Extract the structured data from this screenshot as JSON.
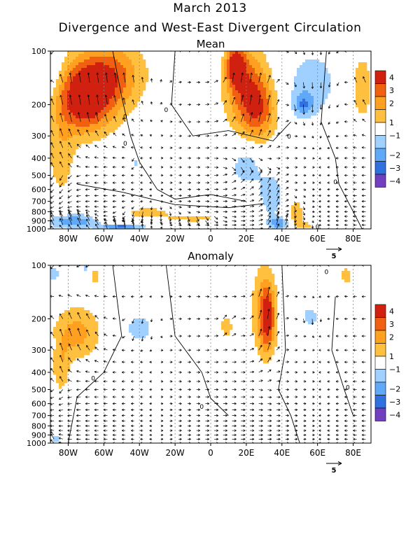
{
  "header": {
    "title_line1": "March 2013",
    "title_line2": "Divergence and West-East Divergent Circulation"
  },
  "colors": {
    "div_pos_1": "#ffc040",
    "div_pos_2": "#ffa020",
    "div_pos_3": "#f06010",
    "div_pos_4": "#d02010",
    "div_neg_1": "#9fd0ff",
    "div_neg_2": "#60a8f8",
    "div_neg_3": "#3070e0",
    "div_neg_4": "#7040c0"
  },
  "chart_data": [
    {
      "type": "heatmap",
      "panel_title": "Mean",
      "x_ticks": [
        "80W",
        "60W",
        "40W",
        "20W",
        "0",
        "20E",
        "40E",
        "60E",
        "80E"
      ],
      "x_tick_values": [
        -80,
        -60,
        -40,
        -20,
        0,
        20,
        40,
        60,
        80
      ],
      "xlim": [
        -90,
        90
      ],
      "y_ticks": [
        "100",
        "200",
        "300",
        "400",
        "500",
        "600",
        "700",
        "800",
        "900",
        "1000"
      ],
      "y_tick_values": [
        100,
        200,
        300,
        400,
        500,
        600,
        700,
        800,
        900,
        1000
      ],
      "ylim": [
        1000,
        100
      ],
      "y_scale": "log",
      "colorbar_labels": [
        "4",
        "3",
        "2",
        "1",
        "−1",
        "−2",
        "−3",
        "−4"
      ],
      "vector_ref_label": "5",
      "contour_label": "0",
      "blobs": [
        {
          "lon": -72,
          "lev": 190,
          "rlon": 14,
          "rlev": 0.42,
          "v": 4
        },
        {
          "lon": -62,
          "lev": 160,
          "rlon": 18,
          "rlev": 0.5,
          "v": 2.5
        },
        {
          "lon": -55,
          "lev": 130,
          "rlon": 20,
          "rlev": 0.4,
          "v": 2
        },
        {
          "lon": -84,
          "lev": 380,
          "rlon": 8,
          "rlev": 0.6,
          "v": 1.6
        },
        {
          "lon": 20,
          "lev": 160,
          "rlon": 12,
          "rlev": 0.55,
          "v": 3.6
        },
        {
          "lon": 14,
          "lev": 120,
          "rlon": 5,
          "rlev": 0.25,
          "v": 4.2
        },
        {
          "lon": 28,
          "lev": 220,
          "rlon": 10,
          "rlev": 0.4,
          "v": 2.5
        },
        {
          "lon": 85,
          "lev": 160,
          "rlon": 6,
          "rlev": 0.45,
          "v": 1.8
        },
        {
          "lon": -35,
          "lev": 810,
          "rlon": 14,
          "rlev": 0.07,
          "v": 1.6
        },
        {
          "lon": -10,
          "lev": 870,
          "rlon": 15,
          "rlev": 0.05,
          "v": 1.5
        },
        {
          "lon": 48,
          "lev": 820,
          "rlon": 4,
          "rlev": 0.2,
          "v": 1.8
        },
        {
          "lon": 53,
          "lev": 960,
          "rlon": 4,
          "rlev": 0.05,
          "v": 1.5
        },
        {
          "lon": 57,
          "lev": 150,
          "rlon": 15,
          "rlev": 0.45,
          "v": -1.6
        },
        {
          "lon": 52,
          "lev": 200,
          "rlon": 6,
          "rlev": 0.15,
          "v": -2.3
        },
        {
          "lon": -90,
          "lev": 120,
          "rlon": 5,
          "rlev": 0.35,
          "v": -1.5
        },
        {
          "lon": 20,
          "lev": 440,
          "rlon": 10,
          "rlev": 0.3,
          "v": -1.6
        },
        {
          "lon": 34,
          "lev": 650,
          "rlon": 7,
          "rlev": 0.3,
          "v": -1.6
        },
        {
          "lon": -78,
          "lev": 910,
          "rlon": 14,
          "rlev": 0.1,
          "v": -2.8
        },
        {
          "lon": -50,
          "lev": 980,
          "rlon": 12,
          "rlev": 0.04,
          "v": -3.6
        },
        {
          "lon": 38,
          "lev": 930,
          "rlon": 6,
          "rlev": 0.08,
          "v": -2.6
        },
        {
          "lon": -42,
          "lev": 420,
          "rlon": 2,
          "rlev": 0.06,
          "v": -1.5
        }
      ]
    },
    {
      "type": "heatmap",
      "panel_title": "Anomaly",
      "x_ticks": [
        "80W",
        "60W",
        "40W",
        "20W",
        "0",
        "20E",
        "40E",
        "60E",
        "80E"
      ],
      "x_tick_values": [
        -80,
        -60,
        -40,
        -20,
        0,
        20,
        40,
        60,
        80
      ],
      "xlim": [
        -90,
        90
      ],
      "y_ticks": [
        "100",
        "200",
        "300",
        "400",
        "500",
        "600",
        "700",
        "800",
        "900",
        "1000"
      ],
      "y_tick_values": [
        100,
        200,
        300,
        400,
        500,
        600,
        700,
        800,
        900,
        1000
      ],
      "ylim": [
        1000,
        100
      ],
      "y_scale": "log",
      "colorbar_labels": [
        "4",
        "3",
        "2",
        "1",
        "−1",
        "−2",
        "−3",
        "−4"
      ],
      "vector_ref_label": "5",
      "contour_label": "0",
      "blobs": [
        {
          "lon": -75,
          "lev": 240,
          "rlon": 13,
          "rlev": 0.35,
          "v": 2.4
        },
        {
          "lon": -84,
          "lev": 380,
          "rlon": 5,
          "rlev": 0.35,
          "v": 1.6
        },
        {
          "lon": -65,
          "lev": 115,
          "rlon": 4,
          "rlev": 0.12,
          "v": 1.4
        },
        {
          "lon": 30,
          "lev": 180,
          "rlon": 7,
          "rlev": 0.6,
          "v": 2.5
        },
        {
          "lon": 32,
          "lev": 200,
          "rlon": 4,
          "rlev": 0.4,
          "v": 3.1
        },
        {
          "lon": 9,
          "lev": 220,
          "rlon": 4,
          "rlev": 0.18,
          "v": 1.5
        },
        {
          "lon": 76,
          "lev": 115,
          "rlon": 4,
          "rlev": 0.15,
          "v": 1.4
        },
        {
          "lon": -40,
          "lev": 225,
          "rlon": 7,
          "rlev": 0.17,
          "v": -1.9
        },
        {
          "lon": 56,
          "lev": 195,
          "rlon": 5,
          "rlev": 0.14,
          "v": -1.6
        },
        {
          "lon": -88,
          "lev": 112,
          "rlon": 4,
          "rlev": 0.15,
          "v": -1.4
        },
        {
          "lon": -70,
          "lev": 105,
          "rlon": 3,
          "rlev": 0.08,
          "v": -1.3
        },
        {
          "lon": -90,
          "lev": 280,
          "rlon": 2,
          "rlev": 0.1,
          "v": -1.3
        },
        {
          "lon": -87,
          "lev": 950,
          "rlon": 3,
          "rlev": 0.07,
          "v": -1.5
        }
      ]
    }
  ]
}
